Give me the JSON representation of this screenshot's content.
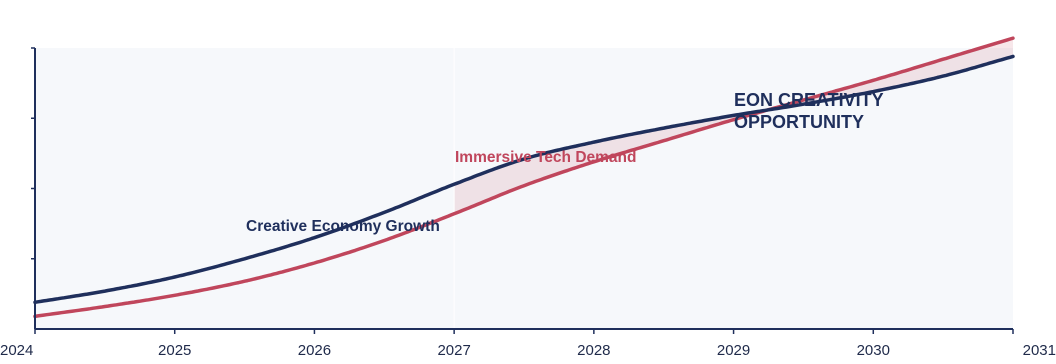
{
  "chart_data": {
    "type": "line",
    "title": "",
    "xlabel": "",
    "ylabel": "",
    "xlim": [
      2024,
      2031
    ],
    "ylim": [
      0,
      100
    ],
    "grid": false,
    "legend": "none",
    "x_ticks": [
      "2024",
      "2025",
      "2026",
      "2027",
      "2028",
      "2029",
      "2030",
      "2031"
    ],
    "series": [
      {
        "name": "Creative Economy Growth",
        "color": "#1f2f5c",
        "x": [
          2024,
          2024.5,
          2025,
          2025.5,
          2026,
          2026.5,
          2027,
          2027.5,
          2028,
          2028.5,
          2029,
          2029.5,
          2030,
          2030.5,
          2031
        ],
        "y": [
          9.5,
          13.5,
          18.5,
          25,
          32.5,
          41.5,
          51.5,
          60.5,
          66.5,
          71.5,
          76,
          80,
          84.5,
          90,
          97
        ]
      },
      {
        "name": "Immersive Tech Demand",
        "color": "#c0465c",
        "x": [
          2024,
          2024.5,
          2025,
          2025.5,
          2026,
          2026.5,
          2027,
          2027.5,
          2028,
          2028.5,
          2029,
          2029.5,
          2030,
          2030.5,
          2031
        ],
        "y": [
          4.5,
          8,
          12,
          17,
          23.5,
          31.5,
          41,
          51,
          59.5,
          67,
          74.5,
          81.5,
          88.5,
          96,
          103.5
        ]
      }
    ],
    "annotations": [
      {
        "text": "Creative Economy Growth",
        "series": 0,
        "x": 2026.5,
        "y": 30
      },
      {
        "text": "Immersive Tech Demand",
        "series": 1,
        "x": 2028.5,
        "y": 63
      },
      {
        "lines": [
          "EON CREATIVITY",
          "OPPORTUNITY"
        ],
        "series": 0,
        "x": 2029.0,
        "y": 76
      }
    ],
    "shaded_region": {
      "x_start": 2027,
      "x_end": 2031,
      "color": "#c0465c"
    }
  }
}
